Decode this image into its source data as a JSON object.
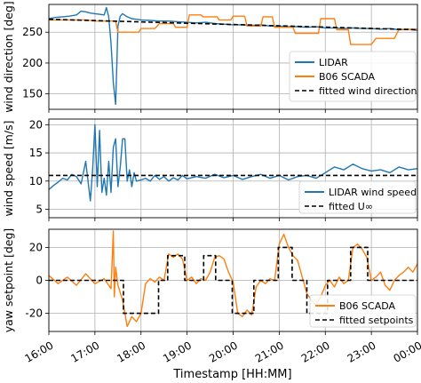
{
  "chart_data": [
    {
      "type": "line",
      "ylabel": "wind direction [deg]",
      "ylim": [
        125,
        295
      ],
      "yticks": [
        150,
        200,
        250
      ],
      "grid": true,
      "legend": "bottom-right",
      "series": [
        {
          "name": "LIDAR",
          "color": "#1f77b4",
          "x": [
            0,
            0.15,
            0.3,
            0.45,
            0.6,
            0.7,
            0.8,
            0.9,
            1.0,
            1.1,
            1.2,
            1.25,
            1.3,
            1.35,
            1.4,
            1.45,
            1.5,
            1.55,
            1.6,
            1.7,
            1.8,
            1.9,
            2.0,
            2.2,
            2.4,
            2.6,
            2.8,
            3.0,
            3.2,
            3.4,
            3.6,
            3.8,
            4.0,
            4.2,
            4.4,
            4.6,
            4.8,
            5.0,
            5.2,
            5.4,
            5.6,
            5.8,
            6.0,
            6.2,
            6.4,
            6.6,
            6.8,
            7.0,
            7.2,
            7.4,
            7.6,
            7.8,
            8.0
          ],
          "y": [
            272,
            274,
            275,
            276,
            278,
            284,
            283,
            281,
            280,
            279,
            278,
            290,
            275,
            232,
            168,
            133,
            260,
            276,
            280,
            275,
            272,
            271,
            270,
            269,
            268,
            268,
            267,
            266,
            265,
            266,
            264,
            263,
            262,
            262,
            261,
            262,
            260,
            260,
            259,
            259,
            258,
            259,
            257,
            257,
            256,
            257,
            256,
            256,
            255,
            256,
            254,
            255,
            253
          ]
        },
        {
          "name": "B06 SCADA",
          "color": "#ff7f0e",
          "x": [
            0,
            0.8,
            1.0,
            1.45,
            1.5,
            1.95,
            2.0,
            2.3,
            2.4,
            2.7,
            2.75,
            3.0,
            3.05,
            3.3,
            3.35,
            3.65,
            3.7,
            3.95,
            4.0,
            4.25,
            4.3,
            4.6,
            4.65,
            4.85,
            4.9,
            5.3,
            5.35,
            5.85,
            5.9,
            6.2,
            6.25,
            6.5,
            6.55,
            7.0,
            7.1,
            7.5,
            7.6,
            8.0
          ],
          "y": [
            270,
            270,
            268,
            268,
            250,
            250,
            256,
            256,
            264,
            264,
            258,
            258,
            278,
            278,
            275,
            275,
            270,
            270,
            276,
            276,
            260,
            260,
            275,
            275,
            258,
            258,
            248,
            248,
            272,
            272,
            254,
            254,
            230,
            230,
            240,
            240,
            255,
            255
          ]
        },
        {
          "name": "fitted wind direction",
          "color": "#000000",
          "dashed": true,
          "x": [
            0,
            8
          ],
          "y": [
            271,
            254
          ]
        }
      ]
    },
    {
      "type": "line",
      "ylabel": "wind speed [m/s]",
      "ylim": [
        3.5,
        21
      ],
      "yticks": [
        5,
        10,
        15,
        20
      ],
      "grid": true,
      "legend": "bottom-right",
      "series": [
        {
          "name": "LIDAR wind speed",
          "color": "#1f77b4",
          "x": [
            0,
            0.1,
            0.2,
            0.3,
            0.4,
            0.5,
            0.6,
            0.7,
            0.8,
            0.85,
            0.9,
            0.95,
            1.0,
            1.05,
            1.1,
            1.15,
            1.2,
            1.25,
            1.3,
            1.35,
            1.4,
            1.45,
            1.5,
            1.55,
            1.6,
            1.65,
            1.7,
            1.75,
            1.8,
            1.85,
            1.9,
            2.0,
            2.1,
            2.2,
            2.3,
            2.4,
            2.5,
            2.6,
            2.7,
            2.8,
            2.9,
            3.0,
            3.2,
            3.4,
            3.6,
            3.8,
            4.0,
            4.2,
            4.4,
            4.6,
            4.8,
            5.0,
            5.2,
            5.4,
            5.6,
            5.8,
            6.0,
            6.2,
            6.4,
            6.6,
            6.8,
            7.0,
            7.2,
            7.4,
            7.6,
            7.8,
            8.0
          ],
          "y": [
            8.5,
            9.2,
            9.8,
            10.5,
            10.2,
            11.2,
            10.8,
            9.5,
            13.5,
            10.0,
            6.5,
            12.0,
            20.0,
            9.0,
            19.0,
            8.0,
            10.5,
            7.5,
            13.5,
            8.0,
            16.0,
            17.5,
            9.0,
            12.5,
            17.5,
            17.5,
            10.0,
            12.0,
            9.0,
            11.5,
            10.0,
            10.2,
            10.5,
            10.0,
            11.0,
            10.3,
            10.8,
            10.0,
            10.6,
            10.2,
            11.0,
            10.4,
            10.8,
            10.5,
            11.2,
            10.6,
            11.0,
            10.3,
            10.8,
            11.2,
            10.5,
            11.0,
            10.2,
            10.8,
            11.0,
            10.5,
            11.5,
            12.5,
            12.0,
            13.0,
            12.2,
            11.8,
            12.0,
            11.5,
            12.5,
            12.0,
            12.2
          ]
        },
        {
          "name": "fitted U∞",
          "color": "#000000",
          "dashed": true,
          "x": [
            0,
            8
          ],
          "y": [
            11.0,
            11.0
          ]
        }
      ]
    },
    {
      "type": "line",
      "ylabel": "yaw setpoint [deg]",
      "ylim": [
        -31,
        31
      ],
      "yticks": [
        -20,
        0,
        20
      ],
      "grid": true,
      "legend": "bottom-right",
      "xlabel": "Timestamp [HH:MM]",
      "xticks": [
        "16:00",
        "17:00",
        "18:00",
        "19:00",
        "20:00",
        "21:00",
        "22:00",
        "23:00",
        "00:00"
      ],
      "xlim": [
        0,
        8
      ],
      "series": [
        {
          "name": "B06 SCADA",
          "color": "#ff7f0e",
          "x": [
            0,
            0.2,
            0.4,
            0.6,
            0.8,
            1.0,
            1.2,
            1.35,
            1.4,
            1.42,
            1.45,
            1.5,
            1.6,
            1.7,
            1.8,
            1.9,
            2.0,
            2.1,
            2.2,
            2.3,
            2.4,
            2.5,
            2.6,
            2.7,
            2.8,
            2.9,
            3.0,
            3.1,
            3.2,
            3.3,
            3.4,
            3.5,
            3.6,
            3.7,
            3.8,
            3.9,
            4.0,
            4.1,
            4.2,
            4.3,
            4.4,
            4.5,
            4.6,
            4.7,
            4.8,
            4.9,
            5.0,
            5.1,
            5.2,
            5.3,
            5.4,
            5.5,
            5.6,
            5.7,
            5.8,
            5.9,
            6.0,
            6.1,
            6.2,
            6.3,
            6.4,
            6.5,
            6.6,
            6.7,
            6.8,
            6.9,
            7.0,
            7.1,
            7.2,
            7.3,
            7.4,
            7.5,
            7.6,
            7.7,
            7.8,
            7.9,
            8.0
          ],
          "y": [
            3,
            -2,
            2,
            -3,
            4,
            -2,
            1,
            -5,
            30,
            -10,
            8,
            -3,
            -12,
            -28,
            -22,
            -25,
            -20,
            -2,
            1,
            -1,
            2,
            0,
            16,
            14,
            16,
            13,
            0,
            2,
            -2,
            1,
            0,
            5,
            14,
            15,
            13,
            5,
            -1,
            -20,
            -22,
            -18,
            -21,
            -4,
            0,
            -2,
            1,
            0,
            22,
            28,
            20,
            15,
            12,
            2,
            -8,
            -12,
            -15,
            -10,
            -3,
            0,
            -4,
            2,
            -2,
            0,
            20,
            22,
            19,
            14,
            0,
            2,
            5,
            -3,
            -6,
            0,
            3,
            5,
            8,
            5,
            10
          ]
        },
        {
          "name": "fitted setpoints",
          "color": "#000000",
          "dashed": true,
          "x": [
            0,
            1.62,
            1.62,
            1.88,
            1.88,
            2.38,
            2.38,
            2.58,
            2.58,
            2.95,
            2.95,
            3.36,
            3.36,
            3.62,
            3.62,
            3.98,
            3.98,
            4.45,
            4.45,
            4.98,
            4.98,
            5.28,
            5.28,
            5.6,
            5.6,
            6.05,
            6.05,
            6.4,
            6.4,
            6.55,
            6.55,
            6.92,
            6.92,
            7.42,
            7.42,
            8.0
          ],
          "y": [
            0,
            0,
            -20,
            -20,
            -20,
            -20,
            0,
            0,
            15,
            15,
            0,
            0,
            15,
            15,
            0,
            0,
            -20,
            -20,
            0,
            0,
            20,
            20,
            0,
            0,
            -20,
            -20,
            0,
            0,
            0,
            0,
            20,
            20,
            0,
            0,
            0,
            0
          ]
        }
      ]
    }
  ]
}
